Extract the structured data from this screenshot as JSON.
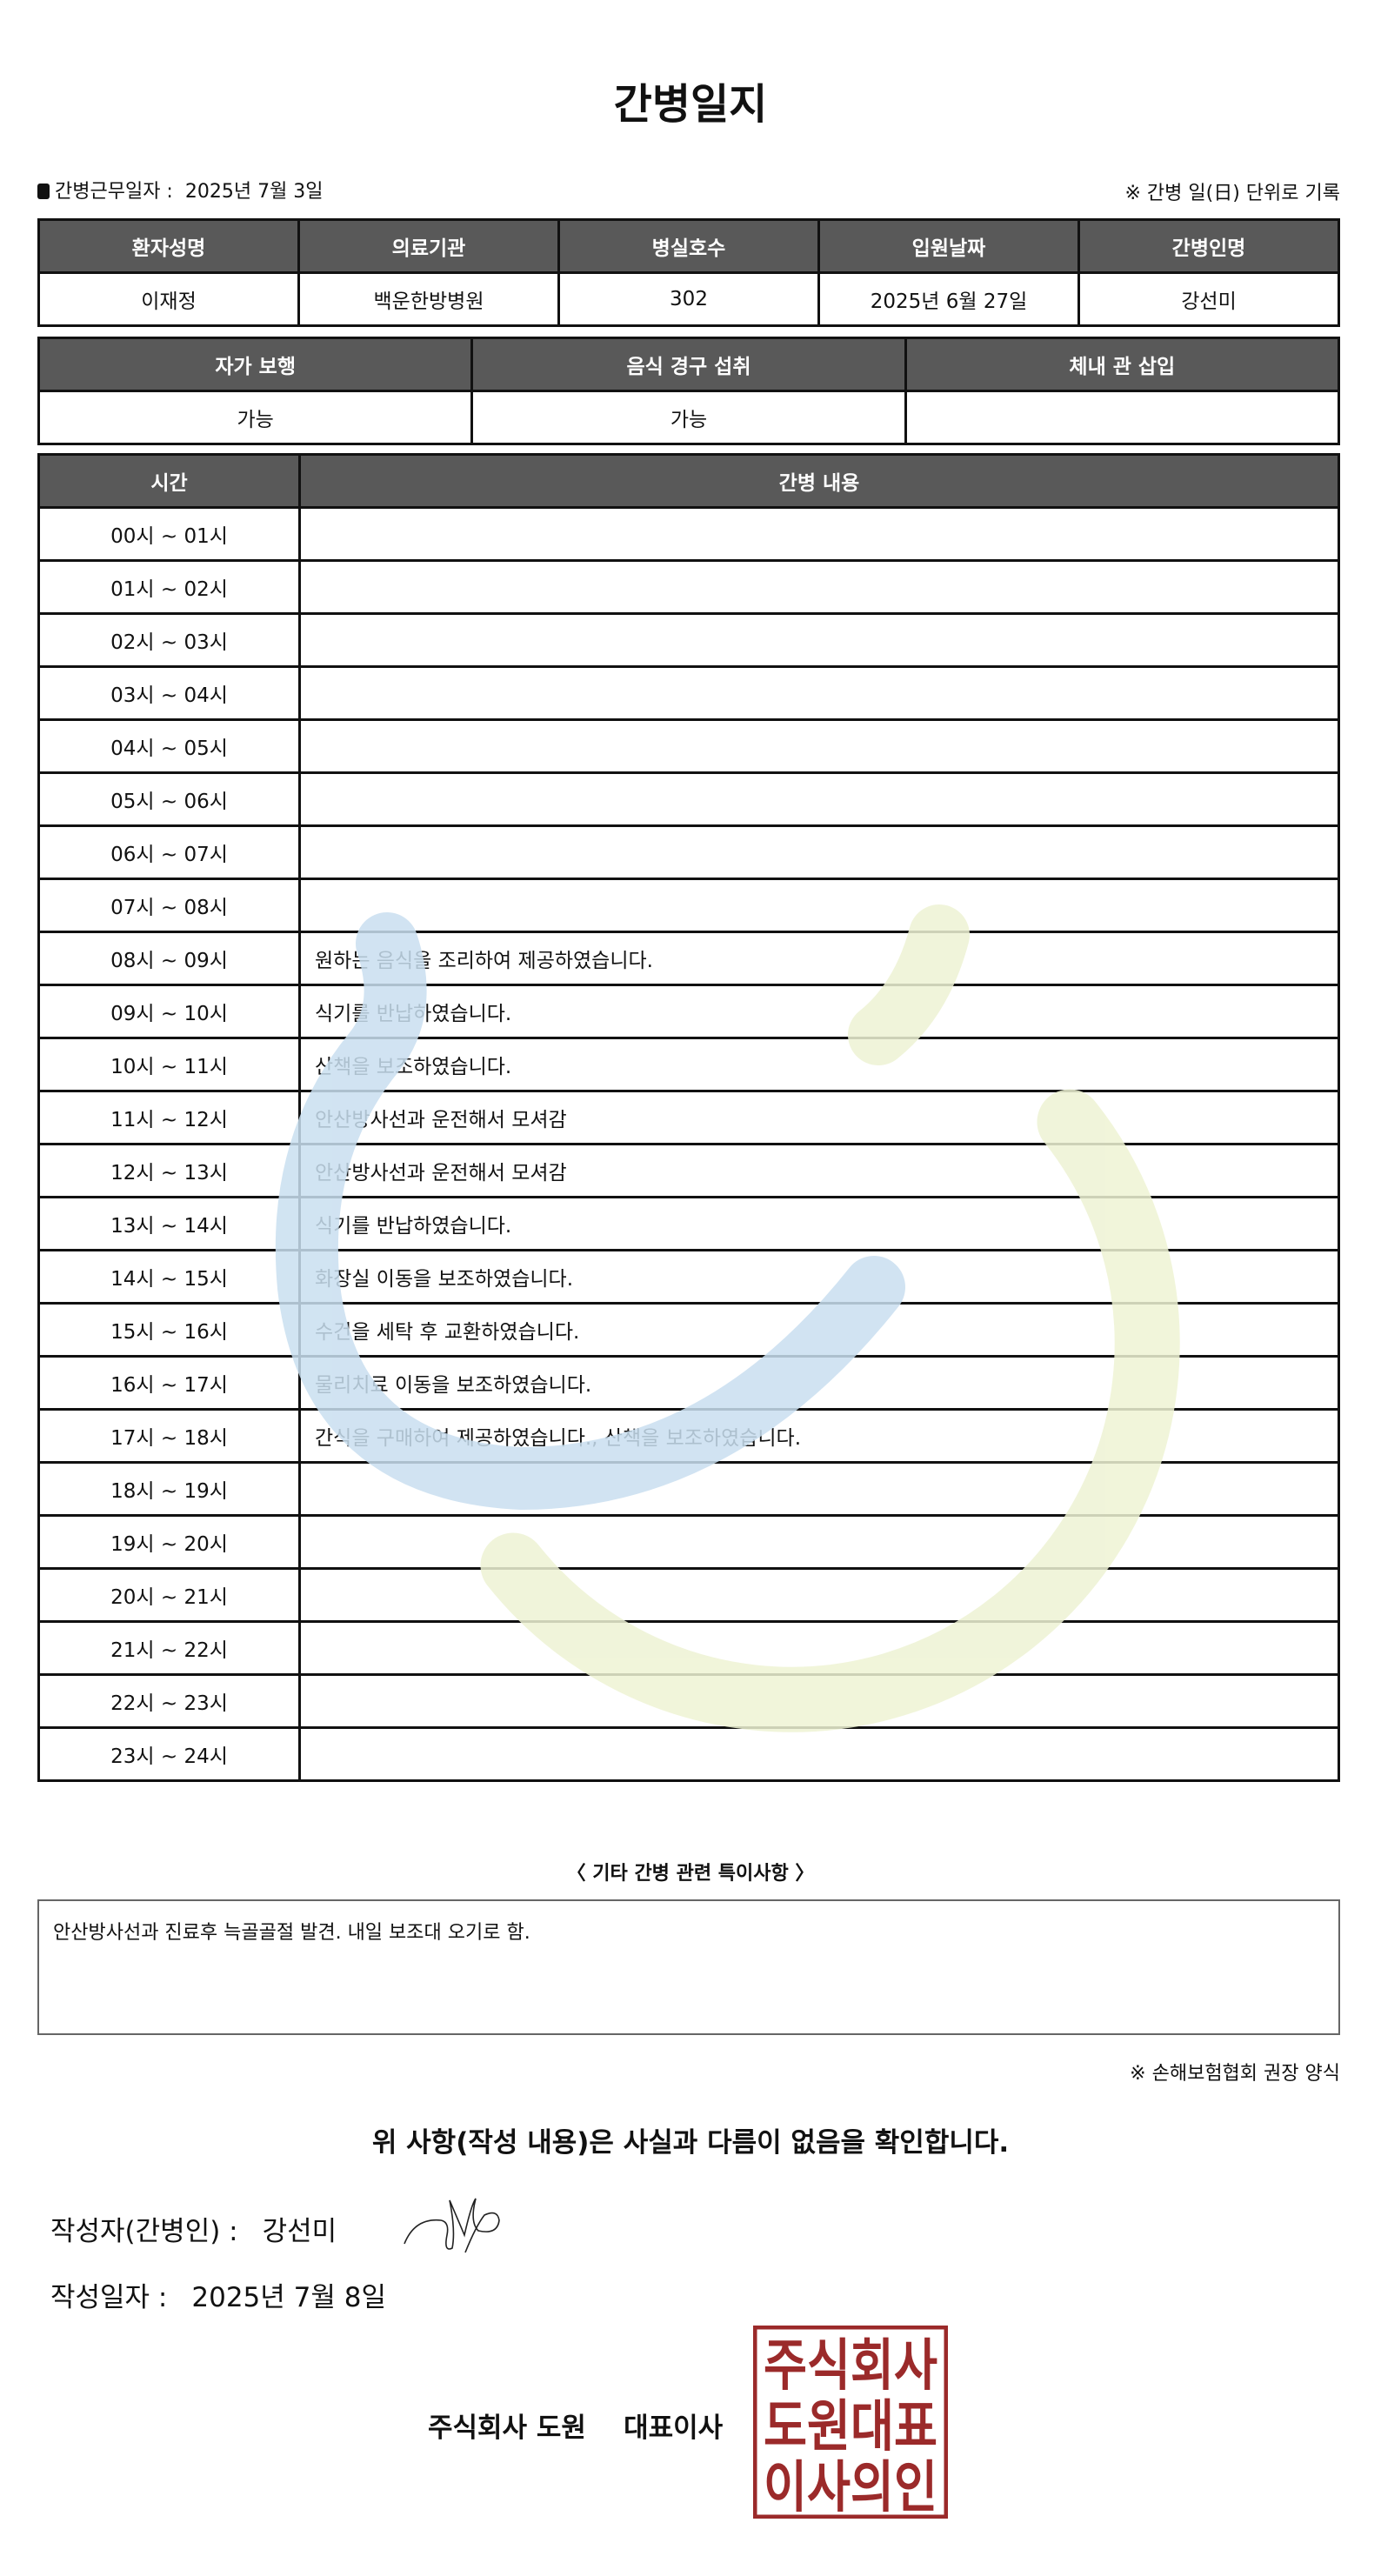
{
  "title": "간병일지",
  "info": {
    "work_date_label": "간병근무일자  :",
    "work_date": "2025년 7월 3일",
    "note": "※ 간병 일(日) 단위로 기록"
  },
  "patient_table": {
    "headers": [
      "환자성명",
      "의료기관",
      "병실호수",
      "입원날짜",
      "간병인명"
    ],
    "values": [
      "이재정",
      "백운한방병원",
      "302",
      "2025년 6월 27일",
      "강선미"
    ]
  },
  "status_table": {
    "headers": [
      "자가 보행",
      "음식 경구 섭취",
      "체내 관 삽입"
    ],
    "values": [
      "가능",
      "가능",
      ""
    ]
  },
  "care_table": {
    "headers": [
      "시간",
      "간병 내용"
    ],
    "rows": [
      {
        "time": "00시 ~ 01시",
        "content": ""
      },
      {
        "time": "01시 ~ 02시",
        "content": ""
      },
      {
        "time": "02시 ~ 03시",
        "content": ""
      },
      {
        "time": "03시 ~ 04시",
        "content": ""
      },
      {
        "time": "04시 ~ 05시",
        "content": ""
      },
      {
        "time": "05시 ~ 06시",
        "content": ""
      },
      {
        "time": "06시 ~ 07시",
        "content": ""
      },
      {
        "time": "07시 ~ 08시",
        "content": ""
      },
      {
        "time": "08시 ~ 09시",
        "content": "원하는 음식을 조리하여 제공하였습니다."
      },
      {
        "time": "09시 ~ 10시",
        "content": "식기를 반납하였습니다."
      },
      {
        "time": "10시 ~ 11시",
        "content": "산책을 보조하였습니다."
      },
      {
        "time": "11시 ~ 12시",
        "content": "안산방사선과 운전해서 모셔감"
      },
      {
        "time": "12시 ~ 13시",
        "content": "안산방사선과 운전해서 모셔감"
      },
      {
        "time": "13시 ~ 14시",
        "content": "식기를 반납하였습니다."
      },
      {
        "time": "14시 ~ 15시",
        "content": "화장실 이동을 보조하였습니다."
      },
      {
        "time": "15시 ~ 16시",
        "content": "수건을 세탁 후 교환하였습니다."
      },
      {
        "time": "16시 ~ 17시",
        "content": "물리치료 이동을 보조하였습니다."
      },
      {
        "time": "17시 ~ 18시",
        "content": "간식을 구매하여 제공하였습니다., 산책을 보조하였습니다."
      },
      {
        "time": "18시 ~ 19시",
        "content": ""
      },
      {
        "time": "19시 ~ 20시",
        "content": ""
      },
      {
        "time": "20시 ~ 21시",
        "content": ""
      },
      {
        "time": "21시 ~ 22시",
        "content": ""
      },
      {
        "time": "22시 ~ 23시",
        "content": ""
      },
      {
        "time": "23시 ~ 24시",
        "content": ""
      }
    ]
  },
  "notes": {
    "label": "〈 기타 간병 관련 특이사항 〉",
    "text": "안산방사선과 진료후 늑골골절 발견. 내일 보조대 오기로 함."
  },
  "footnote": "※ 손해보험협회 권장 양식",
  "confirmation": "위 사항(작성 내용)은 사실과 다름이 없음을 확인합니다.",
  "writer": {
    "label": "작성자(간병인) :",
    "name": "강선미"
  },
  "written_date": {
    "label": "작성일자 :",
    "value": "2025년 7월 8일"
  },
  "company": "주식회사 도원    대표이사",
  "seal": {
    "text": "주식회사도원대표이사의인",
    "color": "#9b2a2a"
  },
  "watermark_colors": {
    "blue": "#c9dff0",
    "green": "#eef3d4"
  }
}
